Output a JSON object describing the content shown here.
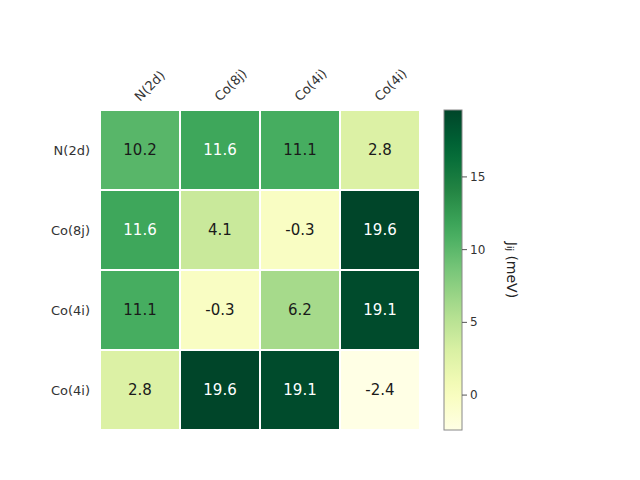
{
  "chart_data": {
    "type": "heatmap",
    "columns": [
      "N(2d)",
      "Co(8j)",
      "Co(4i)",
      "Co(4i)"
    ],
    "rows": [
      "N(2d)",
      "Co(8j)",
      "Co(4i)",
      "Co(4i)"
    ],
    "values": [
      [
        10.2,
        11.6,
        11.1,
        2.8
      ],
      [
        11.6,
        4.1,
        -0.3,
        19.6
      ],
      [
        11.1,
        -0.3,
        6.2,
        19.1
      ],
      [
        2.8,
        19.6,
        19.1,
        -2.4
      ]
    ],
    "data_labels": true,
    "colorbar_label": "Jᵢⱼ (meV)",
    "colorbar_range": [
      -2.4,
      19.6
    ],
    "colorbar_ticks": [
      0,
      5,
      10,
      15
    ]
  }
}
